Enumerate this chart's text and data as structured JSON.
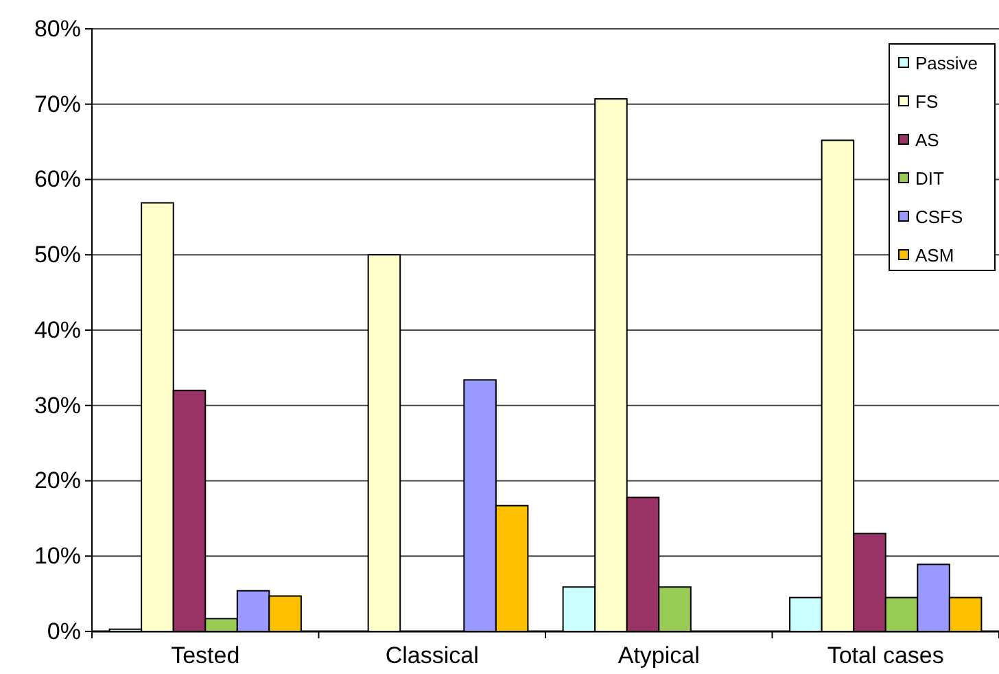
{
  "chart_data": {
    "type": "bar",
    "categories": [
      "Tested",
      "Classical",
      "Atypical",
      "Total cases"
    ],
    "series": [
      {
        "name": "Passive",
        "color": "#ccffff",
        "values": [
          0.3,
          0,
          5.9,
          4.5
        ]
      },
      {
        "name": "FS",
        "color": "#ffffcc",
        "values": [
          56.9,
          50,
          70.7,
          65.2
        ]
      },
      {
        "name": "AS",
        "color": "#993366",
        "values": [
          32,
          0,
          17.8,
          13
        ]
      },
      {
        "name": "DIT",
        "color": "#99cc55",
        "values": [
          1.7,
          0,
          5.9,
          4.5
        ]
      },
      {
        "name": "CSFS",
        "color": "#9999ff",
        "values": [
          5.4,
          33.4,
          0,
          8.9
        ]
      },
      {
        "name": "ASM",
        "color": "#ffc000",
        "values": [
          4.7,
          16.7,
          0,
          4.5
        ]
      }
    ],
    "ylim": [
      0,
      80
    ],
    "yticks": [
      {
        "value": 0,
        "label": "0%"
      },
      {
        "value": 10,
        "label": "10%"
      },
      {
        "value": 20,
        "label": "20%"
      },
      {
        "value": 30,
        "label": "30%"
      },
      {
        "value": 40,
        "label": "40%"
      },
      {
        "value": 50,
        "label": "50%"
      },
      {
        "value": 60,
        "label": "60%"
      },
      {
        "value": 70,
        "label": "70%"
      },
      {
        "value": 80,
        "label": "80%"
      }
    ],
    "grid": "y",
    "legend": "top right"
  }
}
